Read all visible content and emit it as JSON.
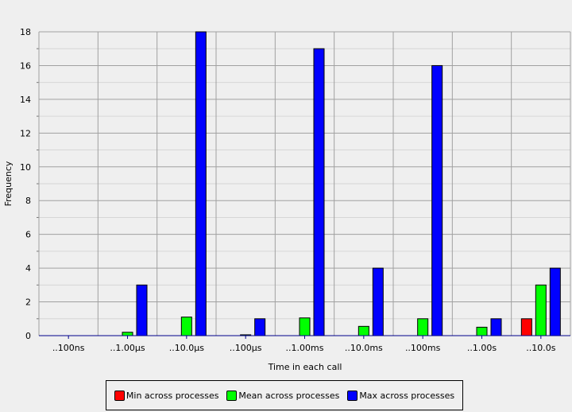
{
  "chart_data": {
    "type": "bar",
    "title": "",
    "xlabel": "Time in each call",
    "ylabel": "Frequency",
    "categories": [
      "..100ns",
      "..1.00µs",
      "..10.0µs",
      "..100µs",
      "..1.00ms",
      "..10.0ms",
      "..100ms",
      "..1.00s",
      "..10.0s"
    ],
    "ylim": [
      0,
      18
    ],
    "yticks": [
      0,
      2,
      4,
      6,
      8,
      10,
      12,
      14,
      16,
      18
    ],
    "grid": true,
    "legend_position": "bottom",
    "series": [
      {
        "name": "Min across processes",
        "color": "#ff0000",
        "values": [
          0,
          0,
          0,
          0,
          0,
          0,
          0,
          0,
          1
        ]
      },
      {
        "name": "Mean across processes",
        "color": "#00ff00",
        "values": [
          0,
          0.2,
          1.1,
          0.05,
          1.05,
          0.55,
          1,
          0.5,
          3
        ]
      },
      {
        "name": "Max across processes",
        "color": "#0000ff",
        "values": [
          0,
          3,
          18,
          1,
          17,
          4,
          16,
          1,
          4
        ]
      }
    ]
  }
}
